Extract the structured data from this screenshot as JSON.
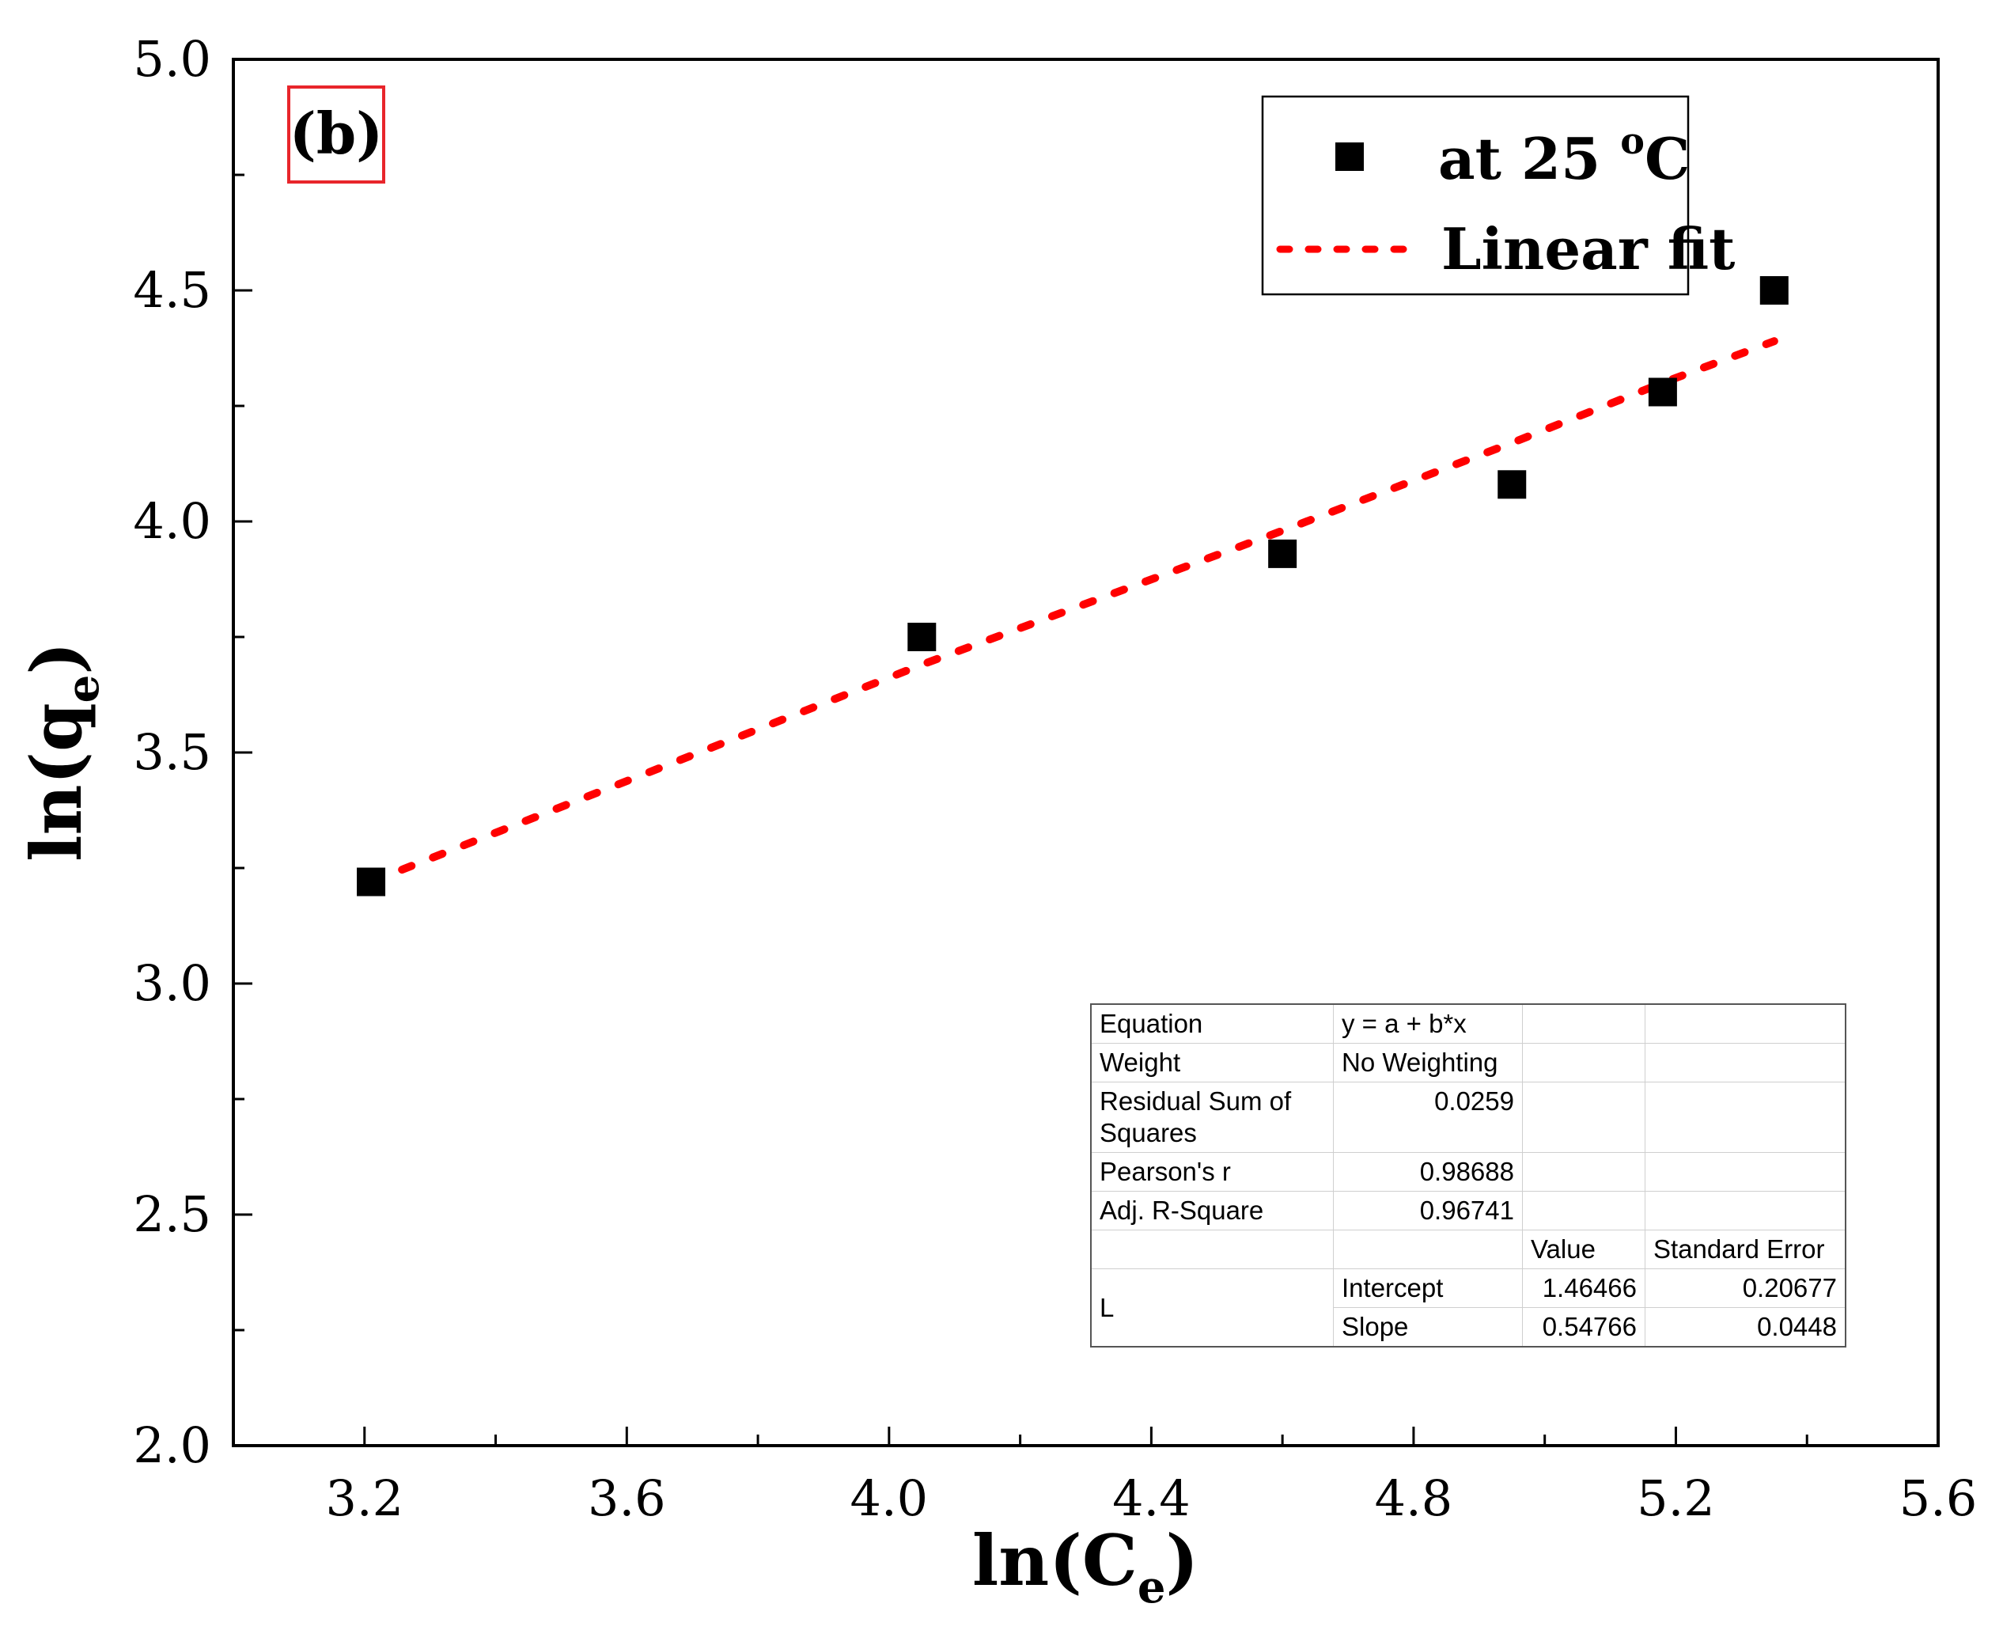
{
  "chart_data": {
    "type": "scatter",
    "panel_label": "(b)",
    "xlabel": {
      "main": "ln(C",
      "sub": "e",
      "close": ")"
    },
    "ylabel": {
      "main": "ln(q",
      "sub": "e",
      "close": ")"
    },
    "xlim": [
      3.0,
      5.6
    ],
    "ylim": [
      2.0,
      5.0
    ],
    "x_ticks": [
      "3.2",
      "3.6",
      "4.0",
      "4.4",
      "4.8",
      "5.2",
      "5.6"
    ],
    "y_ticks": [
      "2.0",
      "2.5",
      "3.0",
      "3.5",
      "4.0",
      "4.5",
      "5.0"
    ],
    "series": [
      {
        "name": "at 25 °C",
        "legend": {
          "main": "at 25 ",
          "sup": "o",
          "unit": "C"
        },
        "marker": "square",
        "color": "#000000",
        "x": [
          3.21,
          4.05,
          4.6,
          4.95,
          5.18,
          5.35
        ],
        "y": [
          3.22,
          3.75,
          3.93,
          4.08,
          4.28,
          4.5
        ]
      },
      {
        "name": "Linear fit",
        "style": "dotted",
        "color": "#ff0000",
        "fit_points": [
          [
            3.21,
            3.22
          ],
          [
            4.05,
            3.69
          ],
          [
            4.6,
            3.98
          ],
          [
            4.95,
            4.17
          ],
          [
            5.18,
            4.3
          ],
          [
            5.35,
            4.39
          ]
        ]
      }
    ],
    "legend_position": "top-right",
    "frame_color": "#000000",
    "panel_label_color": "#e8252b"
  },
  "stats_table": {
    "equation_label": "Equation",
    "equation_value": "y = a + b*x",
    "weight_label": "Weight",
    "weight_value": "No Weighting",
    "rss_label_1": "Residual Sum of",
    "rss_label_2": "Squares",
    "rss_value": "0.0259",
    "pearson_label": "Pearson's r",
    "pearson_value": "0.98688",
    "adj_label": "Adj. R-Square",
    "adj_value": "0.96741",
    "col_value": "Value",
    "col_se": "Standard Error",
    "group_label": "L",
    "intercept_label": "Intercept",
    "intercept_value": "1.46466",
    "intercept_se": "0.20677",
    "slope_label": "Slope",
    "slope_value": "0.54766",
    "slope_se": "0.0448"
  }
}
